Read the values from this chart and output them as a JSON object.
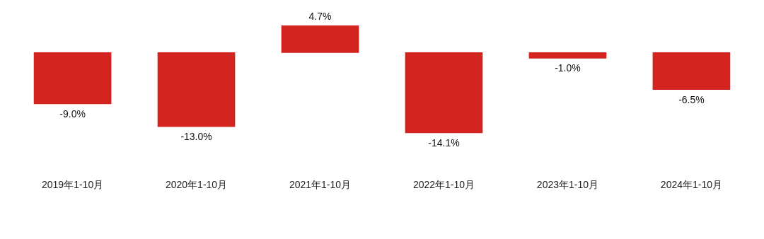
{
  "chart_data": {
    "type": "bar",
    "categories": [
      "2019年1-10月",
      "2020年1-10月",
      "2021年1-10月",
      "2022年1-10月",
      "2023年1-10月",
      "2024年1-10月"
    ],
    "values": [
      -9.0,
      -13.0,
      4.7,
      -14.1,
      -1.0,
      -6.5
    ],
    "value_labels": [
      "-9.0%",
      "-13.0%",
      "4.7%",
      "-14.1%",
      "-1.0%",
      "-6.5%"
    ],
    "color": "#d2231e",
    "tick_labels": "x",
    "grid": false,
    "legend": false
  }
}
